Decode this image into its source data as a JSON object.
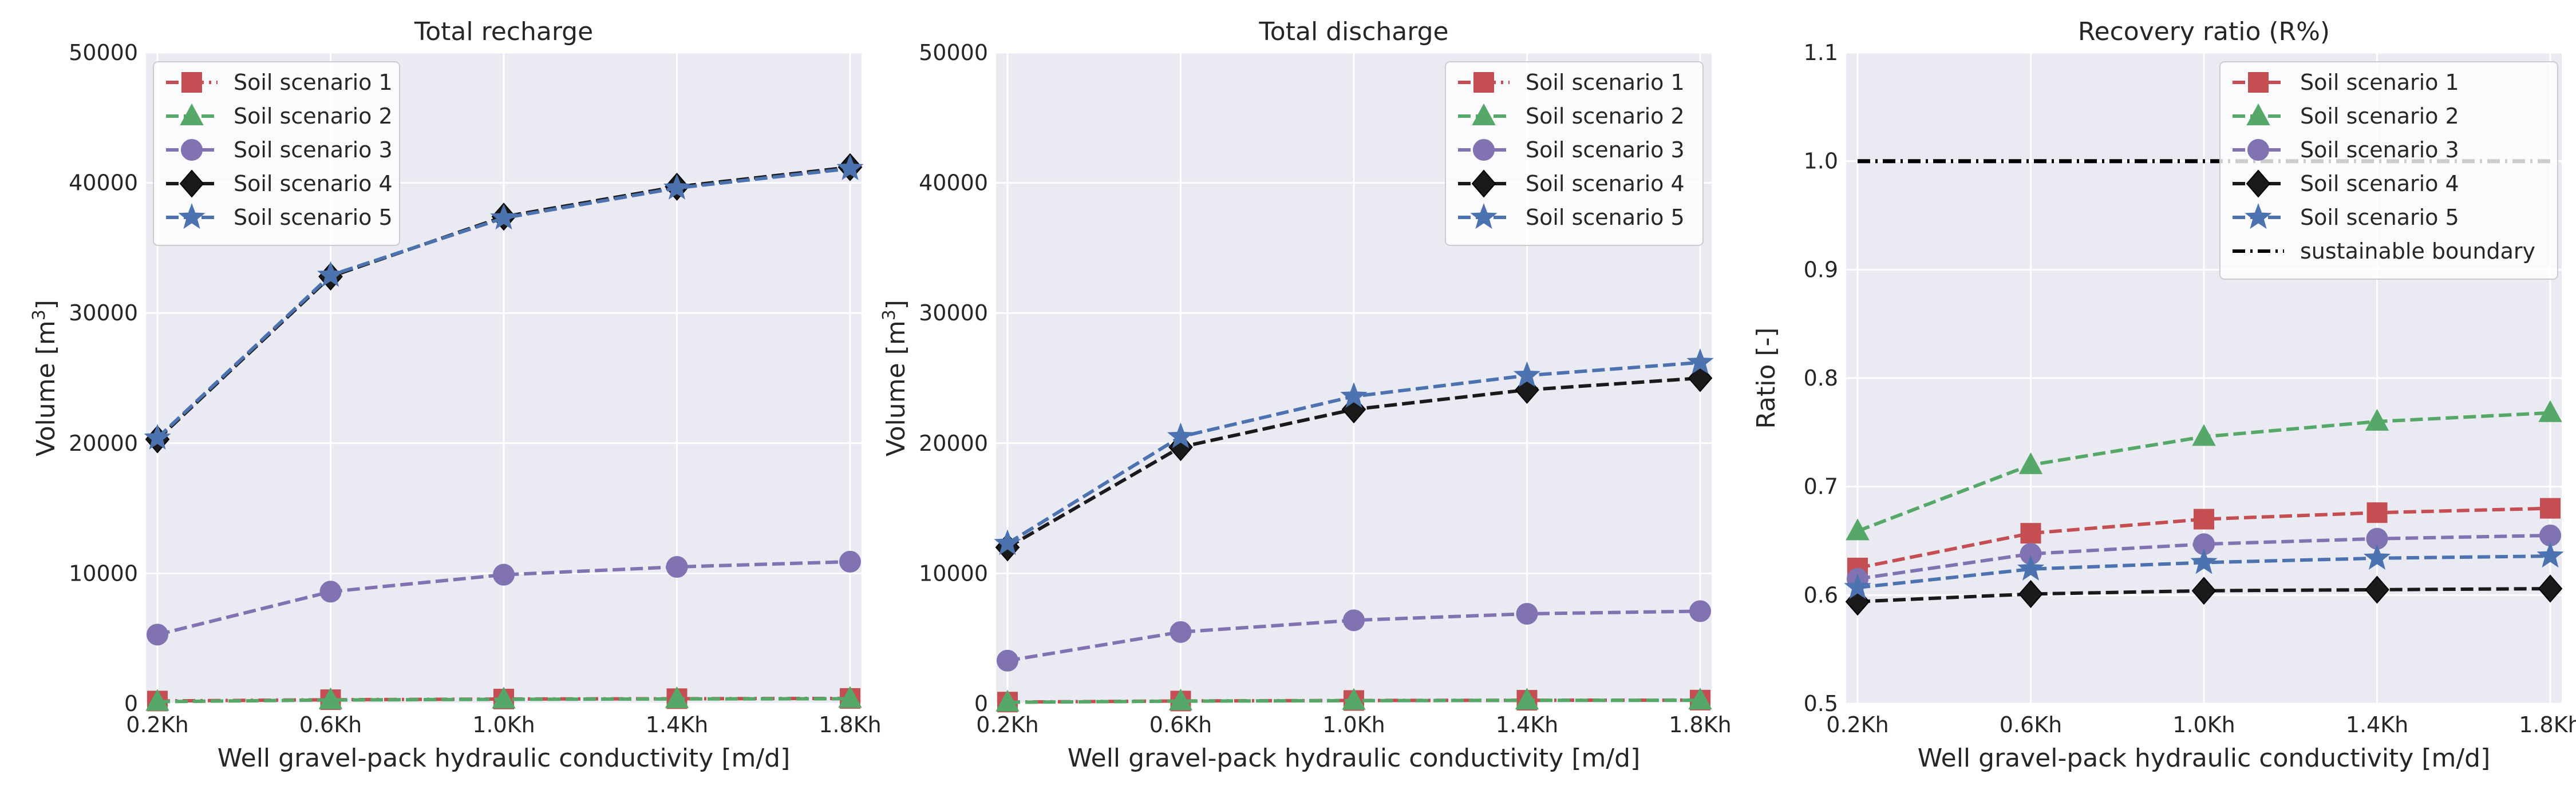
{
  "chart_data": [
    {
      "type": "line",
      "title": "Total recharge",
      "xlabel": "Well gravel-pack hydraulic conductivity [m/d]",
      "ylabel": "Volume [m",
      "ylabel_sup": "3",
      "ylabel_end": "]",
      "x": [
        "0.2Kh",
        "0.6Kh",
        "1.0Kh",
        "1.4Kh",
        "1.8Kh"
      ],
      "ylim": [
        0,
        50000
      ],
      "yticks": [
        "0",
        "10000",
        "20000",
        "30000",
        "40000",
        "50000"
      ],
      "grid": true,
      "legend": "top-left",
      "series": [
        {
          "name": "Soil scenario 1",
          "color": "#c44e52",
          "marker": "square",
          "dash": "dashdot",
          "values": [
            200,
            300,
            350,
            380,
            400
          ]
        },
        {
          "name": "Soil scenario 2",
          "color": "#55a868",
          "marker": "triangle",
          "dash": "dashed",
          "values": [
            150,
            280,
            330,
            360,
            380
          ]
        },
        {
          "name": "Soil scenario 3",
          "color": "#8172b2",
          "marker": "circle",
          "dash": "dashed",
          "values": [
            5300,
            8600,
            9900,
            10500,
            10900
          ]
        },
        {
          "name": "Soil scenario 4",
          "color": "#1a1a1a",
          "marker": "diamond",
          "dash": "dashed",
          "values": [
            20300,
            32800,
            37400,
            39700,
            41200
          ]
        },
        {
          "name": "Soil scenario 5",
          "color": "#4c72b0",
          "marker": "star",
          "dash": "dashed",
          "values": [
            20400,
            32900,
            37300,
            39600,
            41100
          ]
        }
      ]
    },
    {
      "type": "line",
      "title": "Total discharge",
      "xlabel": "Well gravel-pack hydraulic conductivity [m/d]",
      "ylabel": "Volume [m",
      "ylabel_sup": "3",
      "ylabel_end": "]",
      "x": [
        "0.2Kh",
        "0.6Kh",
        "1.0Kh",
        "1.4Kh",
        "1.8Kh"
      ],
      "ylim": [
        0,
        50000
      ],
      "yticks": [
        "0",
        "10000",
        "20000",
        "30000",
        "40000",
        "50000"
      ],
      "grid": true,
      "legend": "top-right",
      "series": [
        {
          "name": "Soil scenario 1",
          "color": "#c44e52",
          "marker": "square",
          "dash": "dashdot",
          "values": [
            120,
            200,
            240,
            260,
            270
          ]
        },
        {
          "name": "Soil scenario 2",
          "color": "#55a868",
          "marker": "triangle",
          "dash": "dashed",
          "values": [
            100,
            190,
            230,
            250,
            260
          ]
        },
        {
          "name": "Soil scenario 3",
          "color": "#8172b2",
          "marker": "circle",
          "dash": "dashed",
          "values": [
            3300,
            5500,
            6400,
            6900,
            7100
          ]
        },
        {
          "name": "Soil scenario 4",
          "color": "#1a1a1a",
          "marker": "diamond",
          "dash": "dashed",
          "values": [
            12000,
            19700,
            22600,
            24100,
            25000
          ]
        },
        {
          "name": "Soil scenario 5",
          "color": "#4c72b0",
          "marker": "star",
          "dash": "dashed",
          "values": [
            12300,
            20500,
            23600,
            25200,
            26200
          ]
        }
      ]
    },
    {
      "type": "line",
      "title": "Recovery ratio (R%)",
      "xlabel": "Well gravel-pack hydraulic conductivity [m/d]",
      "ylabel": "Ratio [-]",
      "ylabel_sup": "",
      "ylabel_end": "",
      "x": [
        "0.2Kh",
        "0.6Kh",
        "1.0Kh",
        "1.4Kh",
        "1.8Kh"
      ],
      "ylim": [
        0.5,
        1.1
      ],
      "yticks": [
        "0.5",
        "0.6",
        "0.7",
        "0.8",
        "0.9",
        "1.0",
        "1.1"
      ],
      "grid": true,
      "legend": "top-right",
      "series": [
        {
          "name": "Soil scenario 1",
          "color": "#c44e52",
          "marker": "square",
          "dash": "dashed",
          "values": [
            0.625,
            0.657,
            0.67,
            0.676,
            0.68
          ]
        },
        {
          "name": "Soil scenario 2",
          "color": "#55a868",
          "marker": "triangle",
          "dash": "dashed",
          "values": [
            0.659,
            0.72,
            0.746,
            0.76,
            0.768
          ]
        },
        {
          "name": "Soil scenario 3",
          "color": "#8172b2",
          "marker": "circle",
          "dash": "dashed",
          "values": [
            0.615,
            0.638,
            0.647,
            0.652,
            0.655
          ]
        },
        {
          "name": "Soil scenario 4",
          "color": "#1a1a1a",
          "marker": "diamond",
          "dash": "dashed",
          "values": [
            0.594,
            0.601,
            0.604,
            0.605,
            0.606
          ]
        },
        {
          "name": "Soil scenario 5",
          "color": "#4c72b0",
          "marker": "star",
          "dash": "dashed",
          "values": [
            0.607,
            0.624,
            0.63,
            0.634,
            0.636
          ]
        },
        {
          "name": "sustainable boundary",
          "color": "#000000",
          "marker": "none",
          "dash": "dashdot",
          "values": [
            1.0,
            1.0,
            1.0,
            1.0,
            1.0
          ]
        }
      ]
    }
  ]
}
